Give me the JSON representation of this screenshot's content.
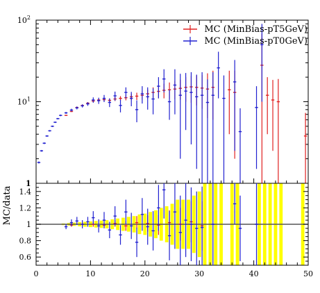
{
  "chart_data": {
    "type": "scatter",
    "xlim": [
      0,
      50
    ],
    "x_ticks": [
      "0",
      "10",
      "20",
      "30",
      "40",
      "50"
    ],
    "upper": {
      "yscale": "log",
      "ylim": [
        1,
        100
      ],
      "y_ticks": [
        {
          "value": 100,
          "base": "10",
          "exp": "2"
        },
        {
          "value": 10,
          "base": "10",
          "exp": "1"
        },
        {
          "value": 1,
          "label": "1"
        }
      ],
      "legend_position": "top-right",
      "series": [
        {
          "name": "MC (MinBias-pT5GeV)",
          "color": "#e02020",
          "points": [
            [
              5.5,
              6.8,
              0.1
            ],
            [
              6.5,
              7.6,
              0.12
            ],
            [
              7.5,
              8.5,
              0.15
            ],
            [
              8.5,
              9.0,
              0.2
            ],
            [
              9.5,
              9.6,
              0.25
            ],
            [
              10.5,
              10.2,
              0.3
            ],
            [
              11.5,
              10.5,
              0.35
            ],
            [
              12.5,
              10.6,
              0.4
            ],
            [
              13.5,
              10.4,
              0.5
            ],
            [
              14.5,
              10.8,
              0.6
            ],
            [
              15.5,
              11.0,
              0.7
            ],
            [
              16.5,
              11.2,
              0.8
            ],
            [
              17.5,
              11.5,
              1.0
            ],
            [
              18.5,
              11.7,
              1.2
            ],
            [
              19.5,
              12.0,
              1.4
            ],
            [
              20.5,
              12.5,
              1.6
            ],
            [
              21.5,
              13.0,
              2.0
            ],
            [
              22.5,
              13.4,
              2.4
            ],
            [
              23.5,
              13.8,
              2.8
            ],
            [
              24.5,
              14.0,
              3.2
            ],
            [
              25.5,
              14.3,
              3.6
            ],
            [
              26.5,
              14.6,
              4.0
            ],
            [
              27.5,
              15.0,
              5.0
            ],
            [
              28.5,
              15.2,
              5.5
            ],
            [
              29.5,
              15.0,
              6.0
            ],
            [
              30.5,
              14.7,
              6.5
            ],
            [
              31.5,
              14.3,
              8.0
            ],
            [
              32.5,
              15.0,
              9.0
            ],
            [
              35.5,
              14.0,
              10.0
            ],
            [
              36.5,
              13.0,
              11.0
            ],
            [
              41.5,
              28.0,
              40.0
            ],
            [
              42.5,
              12.0,
              8.0
            ],
            [
              43.5,
              10.5,
              8.0
            ],
            [
              44.5,
              10.0,
              9.0
            ],
            [
              49.5,
              3.8,
              3.5
            ]
          ]
        },
        {
          "name": "MC (MinBias-pT0GeV)",
          "color": "#2020d0",
          "points": [
            [
              0.5,
              1.8,
              0.05
            ],
            [
              1.0,
              2.5,
              0.06
            ],
            [
              1.5,
              3.1,
              0.07
            ],
            [
              2.0,
              3.8,
              0.08
            ],
            [
              2.5,
              4.4,
              0.09
            ],
            [
              3.0,
              5.0,
              0.1
            ],
            [
              3.5,
              5.6,
              0.11
            ],
            [
              4.0,
              6.2,
              0.12
            ],
            [
              4.5,
              6.8,
              0.15
            ],
            [
              5.5,
              7.3,
              0.2
            ],
            [
              6.5,
              7.9,
              0.3
            ],
            [
              7.5,
              8.4,
              0.35
            ],
            [
              8.5,
              8.9,
              0.4
            ],
            [
              9.5,
              9.4,
              0.5
            ],
            [
              10.5,
              10.5,
              0.8
            ],
            [
              11.5,
              10.3,
              0.9
            ],
            [
              12.5,
              11.0,
              1.1
            ],
            [
              13.5,
              9.8,
              1.2
            ],
            [
              14.5,
              11.8,
              1.5
            ],
            [
              15.5,
              9.0,
              1.6
            ],
            [
              16.5,
              13.0,
              2.0
            ],
            [
              17.5,
              11.0,
              2.2
            ],
            [
              18.5,
              8.0,
              2.4
            ],
            [
              19.5,
              12.5,
              3.0
            ],
            [
              20.5,
              11.5,
              3.5
            ],
            [
              21.5,
              10.8,
              3.8
            ],
            [
              22.5,
              15.5,
              4.5
            ],
            [
              23.5,
              19.0,
              6.0
            ],
            [
              24.5,
              10.0,
              4.0
            ],
            [
              25.5,
              16.0,
              9.0
            ],
            [
              26.5,
              12.0,
              10.0
            ],
            [
              27.5,
              13.5,
              9.0
            ],
            [
              28.5,
              13.0,
              10.0
            ],
            [
              29.5,
              11.5,
              10.0
            ],
            [
              30.5,
              12.0,
              11.0
            ],
            [
              31.5,
              9.8,
              9.0
            ],
            [
              32.5,
              12.0,
              11.0
            ],
            [
              33.5,
              26.0,
              15.0
            ],
            [
              34.5,
              11.0,
              10.0
            ],
            [
              36.5,
              17.5,
              15.0
            ],
            [
              37.5,
              4.3,
              4.0
            ],
            [
              40.5,
              8.5,
              7.0
            ],
            [
              41.5,
              50.0,
              40.0
            ]
          ]
        }
      ]
    },
    "lower": {
      "ylabel": "MC/data",
      "ylim": [
        0.5,
        1.5
      ],
      "y_ticks": [
        "0.6",
        "0.8",
        "1",
        "1.2",
        "1.4"
      ],
      "top_tick_label": "1",
      "reference_line": 1,
      "band_color": "#ffff00",
      "band": [
        [
          5,
          1.01
        ],
        [
          6,
          1.015
        ],
        [
          7,
          1.02
        ],
        [
          8,
          1.025
        ],
        [
          9,
          1.03
        ],
        [
          10,
          1.035
        ],
        [
          11,
          1.04
        ],
        [
          12,
          1.045
        ],
        [
          13,
          1.05
        ],
        [
          14,
          1.06
        ],
        [
          15,
          1.07
        ],
        [
          16,
          1.08
        ],
        [
          17,
          1.09
        ],
        [
          18,
          1.1
        ],
        [
          19,
          1.12
        ],
        [
          20,
          1.13
        ],
        [
          21,
          1.15
        ],
        [
          22,
          1.17
        ],
        [
          23,
          1.2
        ],
        [
          24,
          1.22
        ],
        [
          25,
          1.25
        ],
        [
          26,
          1.3
        ],
        [
          27,
          1.3
        ],
        [
          28,
          1.3
        ],
        [
          29,
          1.35
        ],
        [
          30,
          1.4
        ],
        [
          31,
          1.5
        ],
        [
          32,
          1.5
        ],
        [
          33,
          1.5
        ],
        [
          34,
          1.5
        ],
        [
          36,
          1.5
        ],
        [
          37,
          1.5
        ],
        [
          41,
          1.5
        ],
        [
          42,
          1.5
        ],
        [
          43,
          1.5
        ],
        [
          44,
          1.5
        ],
        [
          45,
          1.5
        ],
        [
          49,
          1.5
        ]
      ],
      "series": [
        {
          "name": "MC (MinBias-pT5GeV)",
          "color": "#e02020",
          "points": [
            [
              6.5,
              0.99,
              0.02
            ],
            [
              8.5,
              1.0,
              0.02
            ],
            [
              10.5,
              1.0,
              0.03
            ],
            [
              12.5,
              0.99,
              0.03
            ],
            [
              14.5,
              1.01,
              0.04
            ],
            [
              16.5,
              0.98,
              0.06
            ],
            [
              18.5,
              1.02,
              0.08
            ],
            [
              20.5,
              1.01,
              0.1
            ],
            [
              22.5,
              0.99,
              0.12
            ],
            [
              24.5,
              1.02,
              0.15
            ],
            [
              26.5,
              1.0,
              0.2
            ],
            [
              28.5,
              1.03,
              0.25
            ],
            [
              30.5,
              0.98,
              0.3
            ]
          ]
        },
        {
          "name": "MC (MinBias-pT0GeV)",
          "color": "#2020d0",
          "points": [
            [
              5.5,
              0.97,
              0.03
            ],
            [
              6.5,
              1.02,
              0.04
            ],
            [
              7.5,
              1.04,
              0.05
            ],
            [
              8.5,
              1.0,
              0.05
            ],
            [
              9.5,
              1.03,
              0.06
            ],
            [
              10.5,
              1.08,
              0.08
            ],
            [
              11.5,
              0.98,
              0.08
            ],
            [
              12.5,
              1.05,
              0.1
            ],
            [
              13.5,
              0.93,
              0.1
            ],
            [
              14.5,
              1.1,
              0.12
            ],
            [
              15.5,
              0.87,
              0.12
            ],
            [
              16.5,
              1.15,
              0.15
            ],
            [
              17.5,
              0.98,
              0.16
            ],
            [
              18.5,
              0.78,
              0.18
            ],
            [
              19.5,
              1.12,
              0.2
            ],
            [
              20.5,
              0.97,
              0.22
            ],
            [
              21.5,
              0.92,
              0.24
            ],
            [
              22.5,
              1.2,
              0.28
            ],
            [
              23.5,
              1.42,
              0.35
            ],
            [
              24.5,
              0.86,
              0.3
            ],
            [
              25.5,
              1.15,
              0.45
            ],
            [
              26.5,
              0.9,
              0.45
            ],
            [
              27.5,
              1.05,
              0.45
            ],
            [
              28.5,
              1.0,
              0.45
            ],
            [
              29.5,
              0.95,
              0.45
            ],
            [
              30.5,
              0.96,
              0.5
            ],
            [
              32.5,
              1.0,
              0.5
            ],
            [
              36.5,
              1.25,
              0.25
            ],
            [
              37.5,
              0.95,
              0.4
            ],
            [
              40.5,
              1.0,
              0.5
            ]
          ]
        }
      ]
    }
  }
}
